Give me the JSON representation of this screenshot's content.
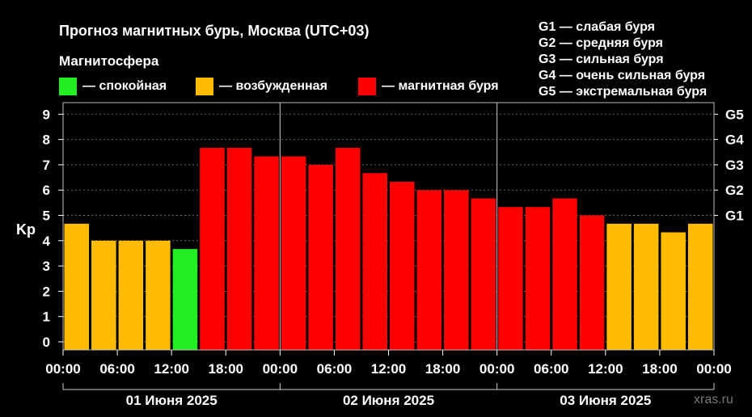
{
  "title": "Прогноз магнитных бурь, Москва (UTC+03)",
  "magnetosphere_label": "Магнитосфера",
  "legend": [
    {
      "label": "— спокойная",
      "color": "#22ee22"
    },
    {
      "label": "— возбужденная",
      "color": "#ffbb00"
    },
    {
      "label": "— магнитная буря",
      "color": "#ff0000"
    }
  ],
  "g_legend": [
    "G1 — слабая буря",
    "G2 — средняя буря",
    "G3 — сильная буря",
    "G4 — очень сильная буря",
    "G5 — экстремальная буря"
  ],
  "watermark": "xras.ru",
  "chart_data": {
    "type": "bar",
    "ylabel": "Kp",
    "ylim": [
      0,
      9
    ],
    "y_ticks": [
      "0",
      "1",
      "2",
      "3",
      "4",
      "5",
      "6",
      "7",
      "8",
      "9"
    ],
    "right_ticks": [
      {
        "label": "G1",
        "value": 5
      },
      {
        "label": "G2",
        "value": 6
      },
      {
        "label": "G3",
        "value": 7
      },
      {
        "label": "G4",
        "value": 8
      },
      {
        "label": "G5",
        "value": 9
      }
    ],
    "x_tick_labels": [
      "00:00",
      "06:00",
      "12:00",
      "18:00",
      "00:00",
      "06:00",
      "12:00",
      "18:00",
      "00:00",
      "06:00",
      "12:00",
      "18:00",
      "00:00"
    ],
    "days": [
      "01 Июня 2025",
      "02 Июня 2025",
      "03 Июня 2025"
    ],
    "grid": true,
    "values": [
      4.67,
      4.0,
      4.0,
      4.0,
      3.67,
      7.67,
      7.67,
      7.33,
      7.33,
      7.0,
      7.67,
      6.67,
      6.33,
      6.0,
      6.0,
      5.67,
      5.33,
      5.33,
      5.67,
      5.0,
      4.67,
      4.67,
      4.33,
      4.67
    ],
    "colors": {
      "quiet": "#22ee22",
      "active": "#ffbb00",
      "storm": "#ff0000"
    }
  }
}
